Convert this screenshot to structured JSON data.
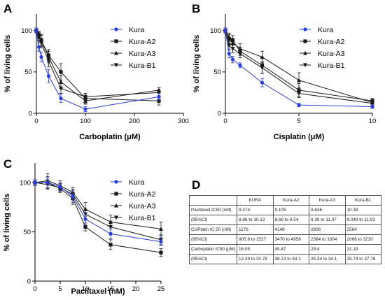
{
  "chart_data": [
    {
      "panel": "A",
      "type": "line",
      "xlabel": "Carboplatin (μM)",
      "ylabel": "% of living cells",
      "xlim": [
        0,
        300
      ],
      "ylim": [
        0,
        120
      ],
      "xticks": [
        0,
        100,
        200,
        300
      ],
      "yticks": [
        0,
        50,
        100
      ],
      "legend": "top-right",
      "grid": false,
      "series": [
        {
          "name": "Kura",
          "color": "#2a3ddb",
          "marker": "circle",
          "x": [
            0,
            5,
            10,
            25,
            50,
            100,
            250
          ],
          "y": [
            100,
            80,
            68,
            45,
            18,
            5,
            20
          ],
          "err": [
            3,
            5,
            6,
            8,
            5,
            3,
            4
          ]
        },
        {
          "name": "Kura-A2",
          "color": "#1a1a1a",
          "marker": "square",
          "x": [
            0,
            5,
            10,
            25,
            50,
            100,
            250
          ],
          "y": [
            100,
            95,
            88,
            70,
            50,
            18,
            15
          ],
          "err": [
            3,
            4,
            6,
            7,
            10,
            6,
            5
          ]
        },
        {
          "name": "Kura-A3",
          "color": "#1a1a1a",
          "marker": "triangle-up",
          "x": [
            0,
            5,
            10,
            25,
            50,
            100,
            250
          ],
          "y": [
            100,
            92,
            88,
            68,
            38,
            15,
            28
          ],
          "err": [
            3,
            5,
            7,
            7,
            8,
            4,
            3
          ]
        },
        {
          "name": "Kura-B1",
          "color": "#1a1a1a",
          "marker": "triangle-down",
          "x": [
            0,
            5,
            10,
            25,
            50,
            100,
            250
          ],
          "y": [
            100,
            93,
            85,
            63,
            30,
            20,
            25
          ],
          "err": [
            3,
            5,
            6,
            7,
            6,
            4,
            4
          ]
        }
      ]
    },
    {
      "panel": "B",
      "type": "line",
      "xlabel": "Cisplatin (μM)",
      "ylabel": "% of living cells",
      "xlim": [
        0,
        10
      ],
      "ylim": [
        0,
        120
      ],
      "xticks": [
        0,
        5,
        10
      ],
      "yticks": [
        0,
        50,
        100
      ],
      "legend": "top-right",
      "grid": false,
      "series": [
        {
          "name": "Kura",
          "color": "#2a3ddb",
          "marker": "circle",
          "x": [
            0,
            0.25,
            0.5,
            1,
            2.5,
            5,
            10
          ],
          "y": [
            100,
            72,
            65,
            58,
            37,
            10,
            8
          ],
          "err": [
            3,
            5,
            4,
            3,
            5,
            2,
            2
          ]
        },
        {
          "name": "Kura-A2",
          "color": "#1a1a1a",
          "marker": "square",
          "x": [
            0,
            0.25,
            0.5,
            1,
            2.5,
            5,
            10
          ],
          "y": [
            100,
            90,
            88,
            75,
            58,
            28,
            15
          ],
          "err": [
            3,
            5,
            6,
            5,
            10,
            8,
            3
          ]
        },
        {
          "name": "Kura-A3",
          "color": "#1a1a1a",
          "marker": "triangle-up",
          "x": [
            0,
            0.25,
            0.5,
            1,
            2.5,
            5,
            10
          ],
          "y": [
            100,
            92,
            85,
            78,
            68,
            40,
            13
          ],
          "err": [
            3,
            5,
            6,
            6,
            7,
            9,
            3
          ]
        },
        {
          "name": "Kura-B1",
          "color": "#1a1a1a",
          "marker": "triangle-down",
          "x": [
            0,
            0.25,
            0.5,
            1,
            2.5,
            5,
            10
          ],
          "y": [
            100,
            82,
            78,
            72,
            55,
            24,
            12
          ],
          "err": [
            3,
            5,
            5,
            5,
            7,
            5,
            3
          ]
        }
      ]
    },
    {
      "panel": "C",
      "type": "line",
      "xlabel": "Paclitaxel  (nM)",
      "ylabel": "% of living cells",
      "xlim": [
        0,
        25
      ],
      "ylim": [
        0,
        120
      ],
      "xticks": [
        0,
        5,
        10,
        15,
        20,
        25
      ],
      "yticks": [
        0,
        50,
        100
      ],
      "legend": "top-right",
      "grid": false,
      "series": [
        {
          "name": "Kura",
          "color": "#2a3ddb",
          "marker": "circle",
          "x": [
            0,
            2.5,
            5,
            7.5,
            10,
            15,
            25
          ],
          "y": [
            100,
            100,
            96,
            86,
            63,
            48,
            40
          ],
          "err": [
            3,
            5,
            4,
            6,
            6,
            5,
            4
          ]
        },
        {
          "name": "Kura-A2",
          "color": "#1a1a1a",
          "marker": "square",
          "x": [
            0,
            2.5,
            5,
            7.5,
            10,
            15,
            25
          ],
          "y": [
            100,
            100,
            94,
            84,
            55,
            37,
            29
          ],
          "err": [
            3,
            6,
            4,
            6,
            4,
            5,
            4
          ]
        },
        {
          "name": "Kura-A3",
          "color": "#1a1a1a",
          "marker": "triangle-up",
          "x": [
            0,
            2.5,
            5,
            7.5,
            10,
            15,
            25
          ],
          "y": [
            100,
            102,
            97,
            90,
            73,
            60,
            53
          ],
          "err": [
            3,
            7,
            5,
            5,
            7,
            7,
            7
          ]
        },
        {
          "name": "Kura-B1",
          "color": "#1a1a1a",
          "marker": "triangle-down",
          "x": [
            0,
            2.5,
            5,
            7.5,
            10,
            15,
            25
          ],
          "y": [
            100,
            98,
            95,
            88,
            68,
            55,
            42
          ],
          "err": [
            3,
            5,
            4,
            5,
            5,
            6,
            5
          ]
        }
      ]
    },
    {
      "panel": "D",
      "type": "table",
      "columns": [
        "",
        "KURA",
        "Kura-A2",
        "Kura-A3",
        "Kura-B1"
      ],
      "rows": [
        [
          "Paclitaxel IC50 (nM)",
          "9.474",
          "9.105",
          "9.636",
          "10.39"
        ],
        [
          "(95%CI)",
          "8.86 to 10.13",
          "8.69 to 9.54",
          "8.39 to 11.07",
          "9.049 to 11.93"
        ],
        [
          "CisPlatin IC 50 (nM)",
          "1176",
          "4148",
          "2806",
          "2584"
        ],
        [
          "(95%CI)",
          "905.8 to 1527",
          "3470 to 4958",
          "2384 to 3304",
          "2068 to 3230"
        ],
        [
          "Carboplatin IC50 (μM)",
          "16.05",
          "45.47",
          "29.4",
          "31.19"
        ],
        [
          "(95%CI)",
          "12.39 to 20.78",
          "38.23 to 54.1",
          "25.34 to 34.1",
          "25.74 to 37.79"
        ]
      ]
    }
  ]
}
